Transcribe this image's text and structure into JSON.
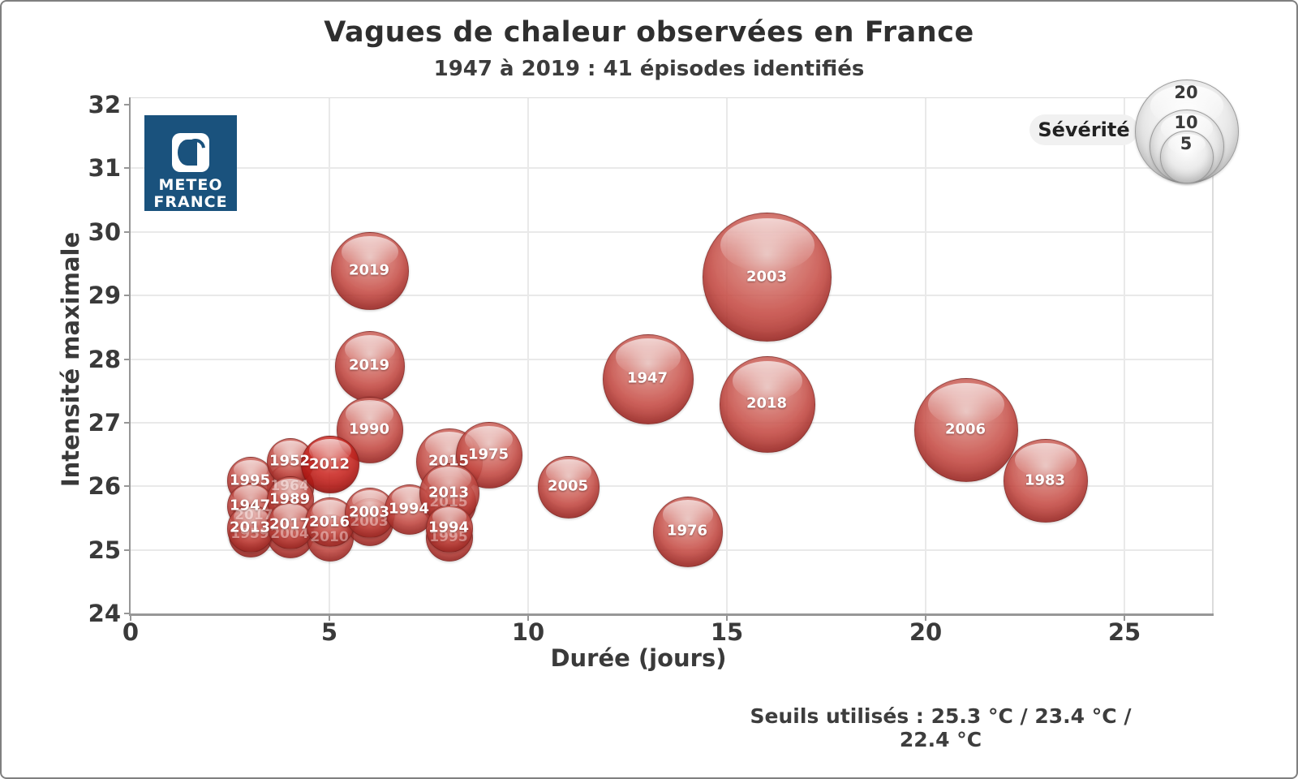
{
  "title": "Vagues de chaleur observées en France",
  "subtitle": "1947 à 2019 : 41 épisodes identifiés",
  "footer_note": "Seuils utilisés : 25.3 °C / 23.4 °C / 22.4 °C",
  "logo": {
    "line1": "METEO",
    "line2": "FRANCE",
    "bg_color": "#1a527d"
  },
  "legend": {
    "title": "Sévérité",
    "sizes": [
      20,
      10,
      5
    ]
  },
  "colors": {
    "bubble_red": "#c0392b",
    "bubble_dark_red": "#b81814",
    "legend_gray": "#d9d9d9",
    "logo_blue": "#1a527d",
    "axis_text": "#3a3a3a",
    "grid": "#e9e9e9"
  },
  "chart_data": {
    "type": "scatter",
    "variant": "bubble",
    "title": "Vagues de chaleur observées en France",
    "subtitle": "1947 à 2019 : 41 épisodes identifiés",
    "xlabel": "Durée (jours)",
    "ylabel": "Intensité maximale",
    "xlim": [
      0,
      27.2
    ],
    "ylim": [
      24,
      32
    ],
    "xticks": [
      0,
      5,
      10,
      15,
      20,
      25
    ],
    "yticks": [
      24,
      25,
      26,
      27,
      28,
      29,
      30,
      31,
      32
    ],
    "grid": true,
    "size_legend": {
      "title": "Sévérité",
      "values": [
        20,
        10,
        5
      ],
      "position": "top-right"
    },
    "points": [
      {
        "year": "2003",
        "duration_days": 16,
        "intensity_max": 29.3,
        "severity": 31,
        "ghost": false
      },
      {
        "year": "2006",
        "duration_days": 21,
        "intensity_max": 26.9,
        "severity": 20,
        "ghost": false
      },
      {
        "year": "2018",
        "duration_days": 16,
        "intensity_max": 27.3,
        "severity": 17,
        "ghost": false
      },
      {
        "year": "1947",
        "duration_days": 13,
        "intensity_max": 27.7,
        "severity": 15,
        "ghost": false
      },
      {
        "year": "1983",
        "duration_days": 23,
        "intensity_max": 26.1,
        "severity": 13,
        "ghost": false
      },
      {
        "year": "2019",
        "duration_days": 6,
        "intensity_max": 29.4,
        "severity": 11,
        "ghost": false
      },
      {
        "year": "2019",
        "duration_days": 6,
        "intensity_max": 27.9,
        "severity": 9,
        "ghost": false
      },
      {
        "year": "1976",
        "duration_days": 14,
        "intensity_max": 25.3,
        "severity": 9,
        "ghost": false
      },
      {
        "year": "1990",
        "duration_days": 6,
        "intensity_max": 26.9,
        "severity": 8,
        "ghost": false
      },
      {
        "year": "2005",
        "duration_days": 11,
        "intensity_max": 26.0,
        "severity": 7,
        "ghost": false
      },
      {
        "year": "1964",
        "duration_days": 4,
        "intensity_max": 26.0,
        "severity": 4,
        "ghost": true
      },
      {
        "year": "2017",
        "duration_days": 3.1,
        "intensity_max": 25.55,
        "severity": 3.5,
        "ghost": true
      },
      {
        "year": "1959",
        "duration_days": 3,
        "intensity_max": 25.25,
        "severity": 3.5,
        "ghost": true
      },
      {
        "year": "2004",
        "duration_days": 4,
        "intensity_max": 25.25,
        "severity": 4,
        "ghost": true
      },
      {
        "year": "2010",
        "duration_days": 5,
        "intensity_max": 25.2,
        "severity": 4,
        "ghost": true
      },
      {
        "year": "2003",
        "duration_days": 6,
        "intensity_max": 25.45,
        "severity": 4,
        "ghost": true
      },
      {
        "year": "1995",
        "duration_days": 8,
        "intensity_max": 25.2,
        "severity": 4,
        "ghost": true
      },
      {
        "year": "2015",
        "duration_days": 8,
        "intensity_max": 25.75,
        "severity": 5,
        "ghost": true
      },
      {
        "year": "1995",
        "duration_days": 3,
        "intensity_max": 26.1,
        "severity": 4,
        "ghost": false
      },
      {
        "year": "1952",
        "duration_days": 4,
        "intensity_max": 26.4,
        "severity": 4,
        "ghost": false
      },
      {
        "year": "2015",
        "duration_days": 8,
        "intensity_max": 26.4,
        "severity": 8,
        "ghost": false
      },
      {
        "year": "1975",
        "duration_days": 9,
        "intensity_max": 26.5,
        "severity": 8,
        "ghost": false
      },
      {
        "year": "1947",
        "duration_days": 3,
        "intensity_max": 25.7,
        "severity": 4,
        "ghost": false
      },
      {
        "year": "1989",
        "duration_days": 4,
        "intensity_max": 25.8,
        "severity": 4,
        "ghost": false
      },
      {
        "year": "2012",
        "duration_days": 5,
        "intensity_max": 26.35,
        "severity": 6,
        "ghost": false,
        "tone": "dark"
      },
      {
        "year": "2013",
        "duration_days": 3,
        "intensity_max": 25.35,
        "severity": 4,
        "ghost": false
      },
      {
        "year": "2017",
        "duration_days": 4,
        "intensity_max": 25.4,
        "severity": 4,
        "ghost": false
      },
      {
        "year": "2016",
        "duration_days": 5,
        "intensity_max": 25.45,
        "severity": 4.5,
        "ghost": false
      },
      {
        "year": "2003",
        "duration_days": 6,
        "intensity_max": 25.6,
        "severity": 4.5,
        "ghost": false
      },
      {
        "year": "1994",
        "duration_days": 7,
        "intensity_max": 25.65,
        "severity": 4.5,
        "ghost": false
      },
      {
        "year": "2013",
        "duration_days": 8,
        "intensity_max": 25.9,
        "severity": 6.5,
        "ghost": false
      },
      {
        "year": "1994",
        "duration_days": 8,
        "intensity_max": 25.35,
        "severity": 4,
        "ghost": false
      }
    ]
  }
}
